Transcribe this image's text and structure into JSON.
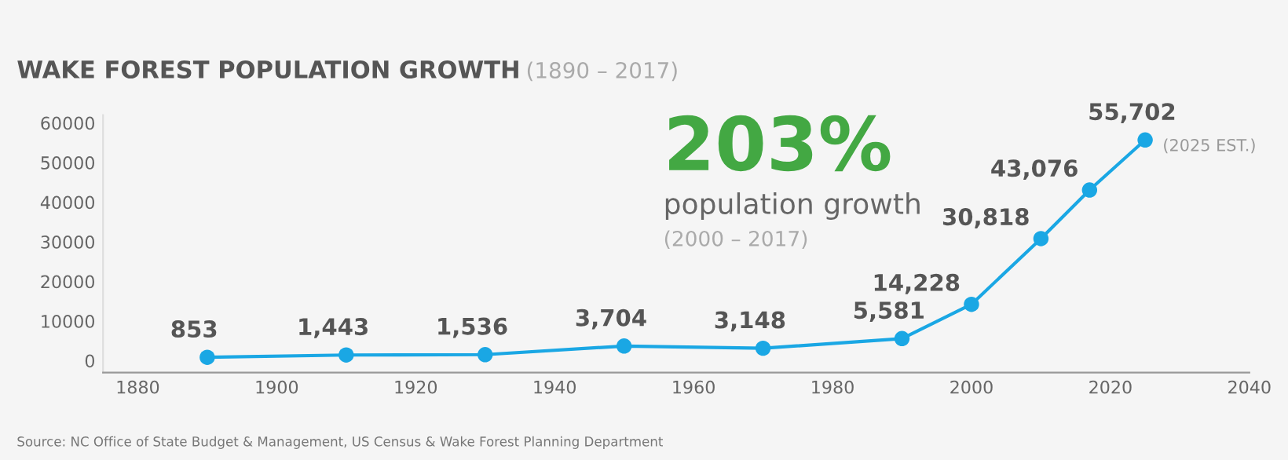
{
  "chart_data": {
    "type": "line",
    "title": "WAKE FOREST POPULATION GROWTH",
    "subtitle": "(1890 – 2017)",
    "x": [
      1890,
      1910,
      1930,
      1950,
      1970,
      1990,
      2000,
      2010,
      2017,
      2025
    ],
    "series": [
      {
        "color": "#1aa7e4",
        "values": [
          853,
          1443,
          1536,
          3704,
          3148,
          5581,
          14228,
          30818,
          43076,
          55702
        ],
        "value_labels": [
          "853",
          "1,443",
          "1,536",
          "3,704",
          "3,148",
          "5,581",
          "14,228",
          "30,818",
          "43,076",
          "55,702"
        ]
      }
    ],
    "xlim": [
      1875,
      2040
    ],
    "xticks": [
      1880,
      1900,
      1920,
      1940,
      1960,
      1980,
      2000,
      2020,
      2040
    ],
    "ylim": [
      -3000,
      62000
    ],
    "yticks": [
      0,
      10000,
      20000,
      30000,
      40000,
      50000,
      60000
    ],
    "grid": false,
    "legend": false,
    "marker": "circle",
    "line_style": "solid",
    "annotations": [
      "203%",
      "population growth",
      "(2000 – 2017)",
      {
        "text": "(2025 EST.)",
        "x": 2025,
        "y": 55702
      },
      "Source: NC Office of State Budget & Management, US Census & Wake Forest Planning Department"
    ]
  }
}
